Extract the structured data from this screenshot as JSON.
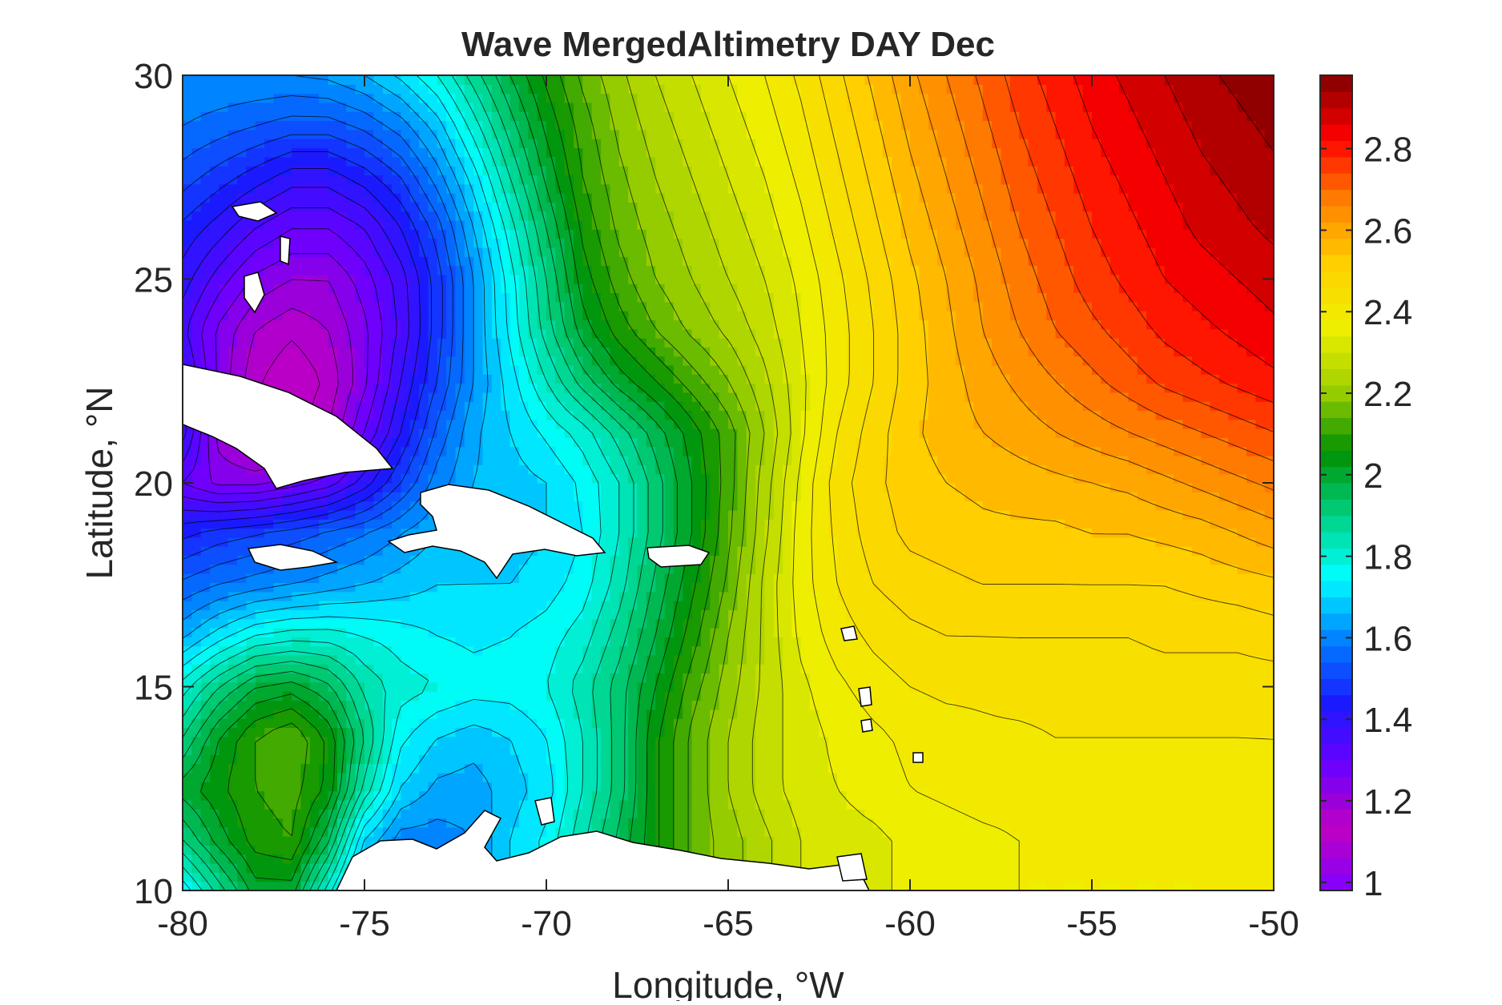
{
  "chart_data": {
    "type": "heatmap",
    "subtype": "filled-contour-map",
    "title": "Wave MergedAltimetry DAY Dec",
    "xlabel": "Longitude, °W",
    "ylabel": "Latitude, °N",
    "xlim": [
      -80,
      -50
    ],
    "ylim": [
      10,
      30
    ],
    "xticks": [
      -80,
      -75,
      -70,
      -65,
      -60,
      -55,
      -50
    ],
    "xtick_labels": [
      "-80",
      "-75",
      "-70",
      "-65",
      "-60",
      "-55",
      "-50"
    ],
    "yticks": [
      10,
      15,
      20,
      25,
      30
    ],
    "ytick_labels": [
      "10",
      "15",
      "20",
      "25",
      "30"
    ],
    "colorbar": {
      "clim": [
        0.98,
        2.98
      ],
      "ticks": [
        1,
        1.2,
        1.4,
        1.6,
        1.8,
        2,
        2.2,
        2.4,
        2.6,
        2.8
      ],
      "tick_labels": [
        "1",
        "1.2",
        "1.4",
        "1.6",
        "1.8",
        "2",
        "2.2",
        "2.4",
        "2.6",
        "2.8"
      ],
      "colormap": [
        "#7f00ff",
        "#c000c0",
        "#6a00ff",
        "#1a1aff",
        "#0080ff",
        "#00ffff",
        "#00d080",
        "#009000",
        "#a0d000",
        "#f0f000",
        "#ffd000",
        "#ff8000",
        "#ff0000",
        "#800000"
      ]
    },
    "grid": false,
    "series": [
      {
        "values": [
          [
            1.75,
            1.88,
            2.0,
            2.0,
            1.8,
            1.6,
            1.55,
            1.55,
            1.62,
            1.7,
            1.75,
            1.85,
            1.95,
            2.05,
            2.15,
            2.2,
            2.25,
            2.3,
            2.32,
            2.33,
            2.35,
            2.36,
            2.37,
            2.38,
            2.38,
            2.38,
            2.38,
            2.38,
            2.38,
            2.39,
            2.4
          ],
          [
            1.9,
            2.0,
            2.08,
            2.1,
            1.95,
            1.7,
            1.6,
            1.6,
            1.62,
            1.7,
            1.75,
            1.85,
            1.95,
            2.05,
            2.15,
            2.2,
            2.25,
            2.3,
            2.32,
            2.33,
            2.35,
            2.36,
            2.37,
            2.38,
            2.38,
            2.38,
            2.38,
            2.38,
            2.38,
            2.39,
            2.4
          ],
          [
            2.0,
            2.05,
            2.1,
            2.12,
            2.05,
            1.85,
            1.7,
            1.65,
            1.64,
            1.68,
            1.72,
            1.82,
            1.92,
            2.05,
            2.15,
            2.22,
            2.28,
            2.32,
            2.34,
            2.36,
            2.38,
            2.39,
            2.4,
            2.4,
            2.4,
            2.4,
            2.4,
            2.4,
            2.4,
            2.4,
            2.41
          ],
          [
            1.9,
            2.02,
            2.1,
            2.14,
            2.05,
            1.9,
            1.75,
            1.7,
            1.68,
            1.7,
            1.74,
            1.82,
            1.92,
            2.05,
            2.15,
            2.22,
            2.28,
            2.32,
            2.35,
            2.37,
            2.39,
            2.4,
            2.41,
            2.41,
            2.42,
            2.42,
            2.42,
            2.42,
            2.42,
            2.42,
            2.42
          ],
          [
            1.8,
            1.9,
            1.98,
            2.0,
            1.95,
            1.85,
            1.8,
            1.78,
            1.76,
            1.76,
            1.78,
            1.84,
            1.92,
            2.02,
            2.12,
            2.2,
            2.27,
            2.33,
            2.37,
            2.4,
            2.42,
            2.43,
            2.43,
            2.44,
            2.44,
            2.44,
            2.44,
            2.44,
            2.44,
            2.44,
            2.44
          ],
          [
            1.65,
            1.72,
            1.78,
            1.8,
            1.8,
            1.78,
            1.76,
            1.74,
            1.73,
            1.74,
            1.76,
            1.8,
            1.88,
            1.98,
            2.08,
            2.18,
            2.27,
            2.35,
            2.4,
            2.43,
            2.45,
            2.46,
            2.46,
            2.46,
            2.46,
            2.46,
            2.46,
            2.47,
            2.47,
            2.47,
            2.48
          ],
          [
            1.55,
            1.58,
            1.6,
            1.62,
            1.64,
            1.66,
            1.68,
            1.7,
            1.7,
            1.7,
            1.72,
            1.76,
            1.84,
            1.95,
            2.05,
            2.15,
            2.27,
            2.36,
            2.42,
            2.46,
            2.48,
            2.49,
            2.5,
            2.5,
            2.5,
            2.5,
            2.5,
            2.5,
            2.51,
            2.52,
            2.53
          ],
          [
            1.45,
            1.48,
            1.5,
            1.52,
            1.55,
            1.58,
            1.62,
            1.66,
            1.68,
            1.68,
            1.7,
            1.74,
            1.82,
            1.92,
            2.02,
            2.13,
            2.25,
            2.36,
            2.43,
            2.48,
            2.51,
            2.52,
            2.53,
            2.53,
            2.53,
            2.54,
            2.54,
            2.55,
            2.56,
            2.58,
            2.6
          ],
          [
            1.3,
            1.25,
            1.25,
            1.28,
            1.32,
            1.4,
            1.5,
            1.6,
            1.66,
            1.68,
            1.7,
            1.75,
            1.82,
            1.92,
            2.02,
            2.12,
            2.24,
            2.35,
            2.44,
            2.49,
            2.52,
            2.54,
            2.55,
            2.56,
            2.57,
            2.58,
            2.59,
            2.61,
            2.63,
            2.65,
            2.67
          ],
          [
            1.4,
            1.2,
            1.12,
            1.12,
            1.18,
            1.3,
            1.42,
            1.55,
            1.65,
            1.7,
            1.75,
            1.8,
            1.88,
            1.96,
            2.04,
            2.12,
            2.22,
            2.33,
            2.42,
            2.48,
            2.53,
            2.56,
            2.58,
            2.6,
            2.62,
            2.64,
            2.66,
            2.68,
            2.7,
            2.72,
            2.74
          ],
          [
            1.4,
            1.25,
            1.15,
            1.1,
            1.15,
            1.25,
            1.38,
            1.5,
            1.62,
            1.72,
            1.82,
            1.92,
            2.0,
            2.06,
            2.12,
            2.18,
            2.25,
            2.33,
            2.4,
            2.46,
            2.52,
            2.56,
            2.6,
            2.63,
            2.66,
            2.69,
            2.72,
            2.75,
            2.77,
            2.79,
            2.81
          ],
          [
            1.35,
            1.25,
            1.18,
            1.15,
            1.18,
            1.25,
            1.35,
            1.48,
            1.62,
            1.75,
            1.88,
            2.0,
            2.08,
            2.14,
            2.19,
            2.23,
            2.28,
            2.34,
            2.4,
            2.46,
            2.52,
            2.57,
            2.62,
            2.66,
            2.7,
            2.73,
            2.76,
            2.79,
            2.81,
            2.83,
            2.85
          ],
          [
            1.4,
            1.32,
            1.25,
            1.22,
            1.22,
            1.28,
            1.36,
            1.48,
            1.62,
            1.76,
            1.9,
            2.04,
            2.12,
            2.18,
            2.22,
            2.26,
            2.3,
            2.35,
            2.41,
            2.47,
            2.53,
            2.58,
            2.63,
            2.68,
            2.72,
            2.76,
            2.79,
            2.82,
            2.84,
            2.86,
            2.88
          ],
          [
            1.45,
            1.4,
            1.34,
            1.3,
            1.3,
            1.34,
            1.42,
            1.52,
            1.66,
            1.8,
            1.94,
            2.07,
            2.15,
            2.2,
            2.24,
            2.28,
            2.32,
            2.37,
            2.43,
            2.49,
            2.55,
            2.6,
            2.65,
            2.7,
            2.74,
            2.78,
            2.81,
            2.84,
            2.87,
            2.89,
            2.91
          ],
          [
            1.52,
            1.48,
            1.44,
            1.4,
            1.4,
            1.44,
            1.5,
            1.6,
            1.72,
            1.86,
            1.99,
            2.1,
            2.17,
            2.22,
            2.26,
            2.3,
            2.34,
            2.39,
            2.45,
            2.51,
            2.57,
            2.62,
            2.67,
            2.72,
            2.76,
            2.8,
            2.83,
            2.86,
            2.89,
            2.91,
            2.93
          ],
          [
            1.58,
            1.56,
            1.54,
            1.52,
            1.52,
            1.55,
            1.6,
            1.68,
            1.8,
            1.92,
            2.03,
            2.12,
            2.19,
            2.24,
            2.28,
            2.32,
            2.36,
            2.41,
            2.47,
            2.53,
            2.59,
            2.64,
            2.69,
            2.74,
            2.78,
            2.82,
            2.85,
            2.88,
            2.91,
            2.93,
            2.95
          ],
          [
            1.62,
            1.62,
            1.62,
            1.62,
            1.63,
            1.66,
            1.71,
            1.78,
            1.88,
            1.98,
            2.07,
            2.15,
            2.21,
            2.26,
            2.3,
            2.34,
            2.38,
            2.43,
            2.49,
            2.55,
            2.61,
            2.66,
            2.71,
            2.76,
            2.8,
            2.84,
            2.87,
            2.9,
            2.93,
            2.95,
            2.97
          ]
        ]
      }
    ],
    "grid_x_range": [
      -80,
      -50
    ],
    "grid_y_range": [
      10,
      30
    ]
  }
}
